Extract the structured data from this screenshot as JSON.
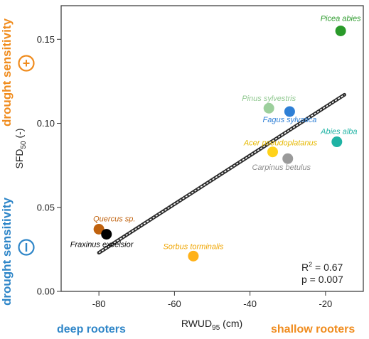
{
  "chart_data": {
    "type": "scatter",
    "xlabel_main": "RWUD",
    "xlabel_sub": "95",
    "xlabel_unit": " (cm)",
    "ylabel_main": "SFD",
    "ylabel_sub": "50",
    "ylabel_unit": " (-)",
    "xlim": [
      -90,
      -10
    ],
    "ylim": [
      0,
      0.17
    ],
    "xticks": [
      {
        "value": -80,
        "label": "-80"
      },
      {
        "value": -60,
        "label": "-60"
      },
      {
        "value": -40,
        "label": "-40"
      },
      {
        "value": -20,
        "label": "-20"
      }
    ],
    "yticks": [
      {
        "value": 0.0,
        "label": "0.00"
      },
      {
        "value": 0.05,
        "label": "0.05"
      },
      {
        "value": 0.1,
        "label": "0.10"
      },
      {
        "value": 0.15,
        "label": "0.15"
      }
    ],
    "points": [
      {
        "name": "Picea abies",
        "x": -16,
        "y": 0.155,
        "color": "#2a9a2a",
        "label_color": "#2a9a2a"
      },
      {
        "name": "Pinus sylvestris",
        "x": -35,
        "y": 0.109,
        "color": "#9ccf9c",
        "label_color": "#8fc88f"
      },
      {
        "name": "Fagus sylvatica",
        "x": -29.5,
        "y": 0.107,
        "color": "#2e7fd6",
        "label_color": "#2e7fd6"
      },
      {
        "name": "Abies alba",
        "x": -17,
        "y": 0.089,
        "color": "#1fb3a4",
        "label_color": "#1fb3a4"
      },
      {
        "name": "Acer pseudoplatanus",
        "x": -34,
        "y": 0.083,
        "color": "#ffd21a",
        "label_color": "#e6b800"
      },
      {
        "name": "Carpinus betulus",
        "x": -30,
        "y": 0.079,
        "color": "#9a9a9a",
        "label_color": "#8c8c8c"
      },
      {
        "name": "Quercus sp.",
        "x": -80,
        "y": 0.037,
        "color": "#c0620e",
        "label_color": "#c0620e"
      },
      {
        "name": "Fraxinus excelsior",
        "x": -78,
        "y": 0.034,
        "color": "#000000",
        "label_color": "#000000"
      },
      {
        "name": "Sorbus torminalis",
        "x": -55,
        "y": 0.021,
        "color": "#ffb21a",
        "label_color": "#f0a500"
      }
    ],
    "regression_line": {
      "x": [
        -80,
        -15
      ],
      "y": [
        0.023,
        0.117
      ]
    },
    "r2_prefix": "R",
    "r2_exp": "2",
    "r2_value": " = 0.67",
    "p_text": "p = 0.007"
  },
  "annotations": {
    "top_left": "drought sensitivity",
    "top_left_color": "#f08c1e",
    "plus_symbol": "+",
    "bottom_left": "drought sensitivity",
    "bottom_left_color": "#2f86c8",
    "minus_symbol": "−",
    "deep_rooters": "deep rooters",
    "deep_color": "#2f86c8",
    "shallow_rooters": "shallow rooters",
    "shallow_color": "#f08c1e"
  }
}
